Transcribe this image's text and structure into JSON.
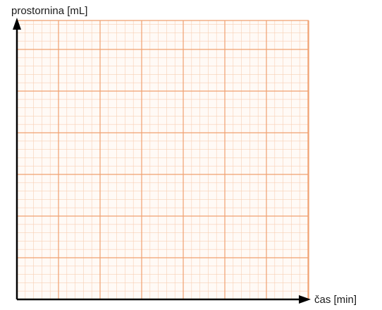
{
  "chart_data": {
    "type": "scatter",
    "title": "",
    "xlabel": "čas [min]",
    "ylabel": "prostornina [mL]",
    "series": [],
    "grid": true,
    "grid_color": "#f0a070",
    "grid_minor_color": "#f8cfb4",
    "axis_color": "#000000"
  }
}
